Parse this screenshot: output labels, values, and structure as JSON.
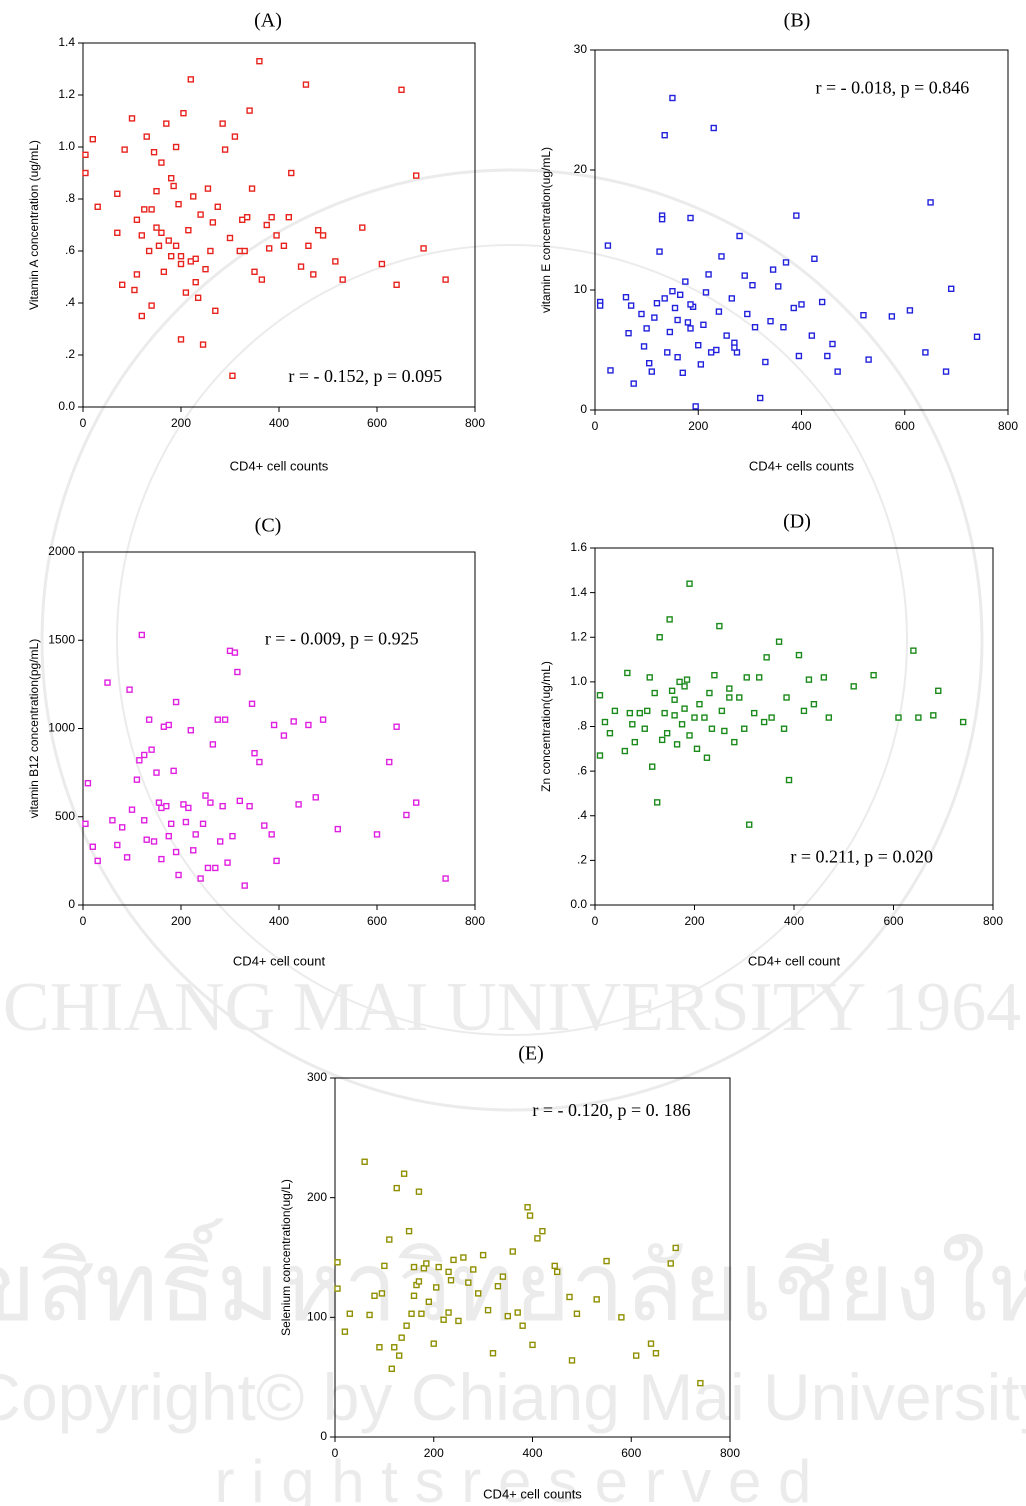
{
  "chart_data": [
    {
      "type": "scatter",
      "title": "(A)",
      "x_label": "CD4+ cell counts",
      "y_label": "Vitamin A concentration (ug/mL)",
      "annotation": "r = - 0.152, p = 0.095",
      "color": "#e8231e",
      "xlim": [
        0,
        800
      ],
      "ylim": [
        0,
        1.4
      ],
      "xticks": [
        0,
        200,
        400,
        600,
        800
      ],
      "yticks": [
        {
          "value": 0,
          "label": "0.0"
        },
        {
          "value": 0.2,
          "label": ".2"
        },
        {
          "value": 0.4,
          "label": ".4"
        },
        {
          "value": 0.6,
          "label": ".6"
        },
        {
          "value": 0.8,
          "label": ".8"
        },
        {
          "value": 1,
          "label": "1.0"
        },
        1.2,
        1.4
      ],
      "x": [
        5,
        5,
        20,
        30,
        70,
        70,
        80,
        85,
        100,
        110,
        105,
        110,
        120,
        130,
        135,
        140,
        145,
        150,
        150,
        155,
        160,
        165,
        170,
        175,
        180,
        185,
        190,
        190,
        195,
        200,
        200,
        205,
        210,
        215,
        220,
        220,
        225,
        230,
        235,
        240,
        245,
        250,
        255,
        260,
        265,
        270,
        275,
        285,
        290,
        300,
        305,
        310,
        320,
        325,
        335,
        340,
        345,
        350,
        360,
        365,
        375,
        385,
        395,
        410,
        420,
        425,
        445,
        455,
        460,
        470,
        480,
        490,
        515,
        530,
        570,
        610,
        640,
        650,
        680,
        695,
        740,
        120,
        140,
        200,
        180,
        160,
        125,
        230,
        330,
        380
      ],
      "values": [
        0.97,
        0.9,
        1.03,
        0.77,
        0.82,
        0.67,
        0.47,
        0.99,
        1.11,
        0.72,
        0.45,
        0.51,
        0.66,
        1.04,
        0.6,
        0.76,
        0.98,
        0.83,
        0.69,
        0.62,
        0.94,
        0.52,
        1.09,
        0.64,
        0.88,
        0.85,
        1.0,
        0.62,
        0.78,
        0.55,
        0.58,
        1.13,
        0.44,
        0.68,
        1.26,
        0.56,
        0.81,
        0.57,
        0.42,
        0.74,
        0.24,
        0.53,
        0.84,
        0.6,
        0.71,
        0.37,
        0.77,
        1.09,
        0.99,
        0.65,
        0.12,
        1.04,
        0.6,
        0.72,
        0.73,
        1.14,
        0.84,
        0.52,
        1.33,
        0.49,
        0.7,
        0.73,
        0.66,
        0.62,
        0.73,
        0.9,
        0.54,
        1.24,
        0.62,
        0.51,
        0.68,
        0.66,
        0.56,
        0.49,
        0.69,
        0.55,
        0.47,
        1.22,
        0.89,
        0.61,
        0.49,
        0.35,
        0.39,
        0.26,
        0.58,
        0.67,
        0.76,
        0.48,
        0.6,
        0.61
      ]
    },
    {
      "type": "scatter",
      "title": "(B)",
      "x_label": "CD4+ cells counts",
      "y_label": "vitamin E concentration(ug/mL)",
      "annotation": "r = - 0.018, p = 0.846",
      "color": "#2222dd",
      "xlim": [
        0,
        800
      ],
      "ylim": [
        0,
        30
      ],
      "xticks": [
        0,
        200,
        400,
        600,
        800
      ],
      "yticks": [
        0,
        10,
        20,
        30
      ],
      "x": [
        10,
        10,
        25,
        30,
        60,
        65,
        70,
        75,
        90,
        95,
        100,
        105,
        110,
        115,
        120,
        125,
        130,
        130,
        135,
        135,
        140,
        145,
        150,
        155,
        160,
        165,
        170,
        175,
        180,
        185,
        185,
        190,
        195,
        200,
        205,
        210,
        215,
        220,
        225,
        230,
        235,
        240,
        245,
        255,
        265,
        270,
        275,
        280,
        290,
        295,
        305,
        310,
        320,
        330,
        340,
        345,
        355,
        365,
        370,
        385,
        390,
        395,
        400,
        420,
        425,
        440,
        450,
        460,
        470,
        520,
        530,
        575,
        610,
        640,
        650,
        680,
        690,
        740,
        150,
        160,
        185,
        270
      ],
      "values": [
        9.0,
        8.7,
        13.7,
        3.3,
        9.4,
        6.4,
        8.7,
        2.2,
        8.0,
        5.3,
        6.8,
        3.9,
        3.2,
        7.7,
        8.9,
        13.2,
        16.2,
        15.9,
        9.3,
        22.9,
        4.8,
        6.5,
        26.0,
        8.5,
        4.4,
        9.6,
        3.1,
        10.7,
        7.3,
        16.0,
        6.8,
        8.6,
        0.3,
        5.4,
        3.8,
        7.1,
        9.8,
        11.3,
        4.8,
        23.5,
        5.0,
        8.2,
        12.8,
        6.2,
        9.3,
        5.6,
        4.8,
        14.5,
        11.2,
        8.0,
        10.4,
        6.9,
        1.0,
        4.0,
        7.4,
        11.7,
        10.3,
        6.9,
        12.3,
        8.5,
        16.2,
        4.5,
        8.8,
        6.2,
        12.6,
        9.0,
        4.5,
        5.5,
        3.2,
        7.9,
        4.2,
        7.8,
        8.3,
        4.8,
        17.3,
        3.2,
        10.1,
        6.1,
        9.9,
        7.5,
        8.8,
        5.2
      ]
    },
    {
      "type": "scatter",
      "title": "(C)",
      "x_label": "CD4+ cell count",
      "y_label": "vitamin B12 concentration(pg/mL)",
      "annotation": "r = - 0.009, p = 0.925",
      "color": "#e020e0",
      "xlim": [
        0,
        800
      ],
      "ylim": [
        0,
        2000
      ],
      "xticks": [
        0,
        200,
        400,
        600,
        800
      ],
      "yticks": [
        0,
        500,
        1000,
        1500,
        2000
      ],
      "x": [
        5,
        10,
        20,
        30,
        50,
        60,
        70,
        80,
        90,
        95,
        100,
        110,
        115,
        120,
        125,
        130,
        135,
        140,
        145,
        150,
        155,
        160,
        165,
        170,
        175,
        180,
        185,
        190,
        190,
        195,
        205,
        210,
        215,
        220,
        225,
        230,
        240,
        245,
        250,
        255,
        260,
        265,
        270,
        275,
        280,
        285,
        290,
        295,
        300,
        305,
        310,
        315,
        320,
        330,
        340,
        345,
        350,
        360,
        370,
        385,
        390,
        395,
        410,
        430,
        440,
        460,
        475,
        490,
        520,
        600,
        625,
        640,
        660,
        680,
        740,
        175,
        160,
        125
      ],
      "values": [
        460,
        690,
        330,
        250,
        1260,
        480,
        340,
        440,
        270,
        1220,
        540,
        710,
        820,
        1530,
        480,
        370,
        1050,
        880,
        360,
        750,
        580,
        260,
        1010,
        560,
        390,
        460,
        760,
        1150,
        300,
        170,
        570,
        470,
        550,
        990,
        310,
        400,
        150,
        460,
        620,
        210,
        580,
        910,
        210,
        1050,
        360,
        560,
        1050,
        240,
        1440,
        390,
        1430,
        1320,
        590,
        110,
        560,
        1140,
        860,
        810,
        450,
        400,
        1020,
        250,
        960,
        1040,
        570,
        1020,
        610,
        1050,
        430,
        400,
        810,
        1010,
        510,
        580,
        150,
        1020,
        550,
        850
      ]
    },
    {
      "type": "scatter",
      "title": "(D)",
      "x_label": "CD4+ cell count",
      "y_label": "Zn concentration(ug/mL)",
      "annotation": "r = 0.211,  p = 0.020",
      "color": "#1a8a1a",
      "xlim": [
        0,
        800
      ],
      "ylim": [
        0,
        1.6
      ],
      "xticks": [
        0,
        200,
        400,
        600,
        800
      ],
      "yticks": [
        {
          "value": 0,
          "label": "0.0"
        },
        {
          "value": 0.2,
          "label": ".2"
        },
        {
          "value": 0.4,
          "label": ".4"
        },
        {
          "value": 0.6,
          "label": ".6"
        },
        {
          "value": 0.8,
          "label": ".8"
        },
        {
          "value": 1,
          "label": "1.0"
        },
        1.2,
        1.4,
        1.6
      ],
      "x": [
        10,
        10,
        20,
        30,
        40,
        60,
        65,
        70,
        75,
        80,
        90,
        100,
        105,
        110,
        115,
        120,
        125,
        130,
        135,
        140,
        145,
        150,
        155,
        160,
        165,
        170,
        175,
        180,
        185,
        190,
        190,
        200,
        205,
        210,
        220,
        225,
        230,
        235,
        240,
        250,
        255,
        260,
        270,
        280,
        290,
        300,
        305,
        310,
        320,
        330,
        340,
        345,
        355,
        370,
        380,
        385,
        390,
        410,
        420,
        430,
        440,
        460,
        470,
        520,
        560,
        610,
        640,
        650,
        680,
        690,
        740,
        160,
        180,
        270
      ],
      "values": [
        0.94,
        0.67,
        0.82,
        0.77,
        0.87,
        0.69,
        1.04,
        0.86,
        0.81,
        0.73,
        0.86,
        0.79,
        0.87,
        1.02,
        0.62,
        0.95,
        0.46,
        1.2,
        0.74,
        0.86,
        0.77,
        1.28,
        0.96,
        0.85,
        0.72,
        1.0,
        0.81,
        0.88,
        1.01,
        1.44,
        0.76,
        0.84,
        0.7,
        0.9,
        0.84,
        0.66,
        0.95,
        0.79,
        1.03,
        1.25,
        0.87,
        0.78,
        0.97,
        0.73,
        0.93,
        0.79,
        1.02,
        0.36,
        0.86,
        1.02,
        0.82,
        1.11,
        0.84,
        1.18,
        0.79,
        0.93,
        0.56,
        1.12,
        0.87,
        1.01,
        0.9,
        1.02,
        0.84,
        0.98,
        1.03,
        0.84,
        1.14,
        0.84,
        0.85,
        0.96,
        0.82,
        0.92,
        0.98,
        0.93
      ]
    },
    {
      "type": "scatter",
      "title": "(E)",
      "x_label": "CD4+ cell counts",
      "y_label": "Selenium concentration(ug/L)",
      "annotation": "r = - 0.120, p = 0. 186",
      "color": "#8f8f00",
      "xlim": [
        0,
        800
      ],
      "ylim": [
        0,
        300
      ],
      "xticks": [
        0,
        200,
        400,
        600,
        800
      ],
      "yticks": [
        0,
        100,
        200,
        300
      ],
      "x": [
        5,
        5,
        20,
        30,
        60,
        70,
        80,
        90,
        95,
        100,
        110,
        115,
        120,
        125,
        130,
        135,
        140,
        145,
        150,
        155,
        160,
        165,
        170,
        175,
        180,
        185,
        190,
        200,
        205,
        210,
        220,
        230,
        235,
        240,
        250,
        260,
        270,
        280,
        290,
        300,
        310,
        320,
        330,
        340,
        350,
        360,
        370,
        380,
        390,
        395,
        400,
        410,
        420,
        445,
        450,
        475,
        480,
        490,
        530,
        550,
        580,
        610,
        640,
        650,
        680,
        690,
        740,
        160,
        170,
        230
      ],
      "values": [
        146,
        124,
        88,
        103,
        230,
        102,
        118,
        75,
        120,
        143,
        165,
        57,
        75,
        208,
        68,
        83,
        220,
        93,
        172,
        103,
        142,
        127,
        205,
        103,
        141,
        145,
        113,
        78,
        125,
        142,
        98,
        104,
        131,
        148,
        97,
        150,
        129,
        140,
        120,
        152,
        106,
        70,
        126,
        134,
        101,
        155,
        104,
        93,
        192,
        185,
        77,
        166,
        172,
        143,
        138,
        117,
        64,
        103,
        115,
        147,
        100,
        68,
        78,
        70,
        145,
        158,
        45,
        118,
        130,
        138
      ]
    }
  ],
  "watermark": {
    "thai": "ลิขสิทธิ์มหาวิทยาลัยเชียงใหม่",
    "copyright": "Copyright© by Chiang Mai University",
    "rights": "r i g h t s   r e s e r v e d",
    "seal": "CHIANG MAI UNIVERSITY 1964"
  }
}
